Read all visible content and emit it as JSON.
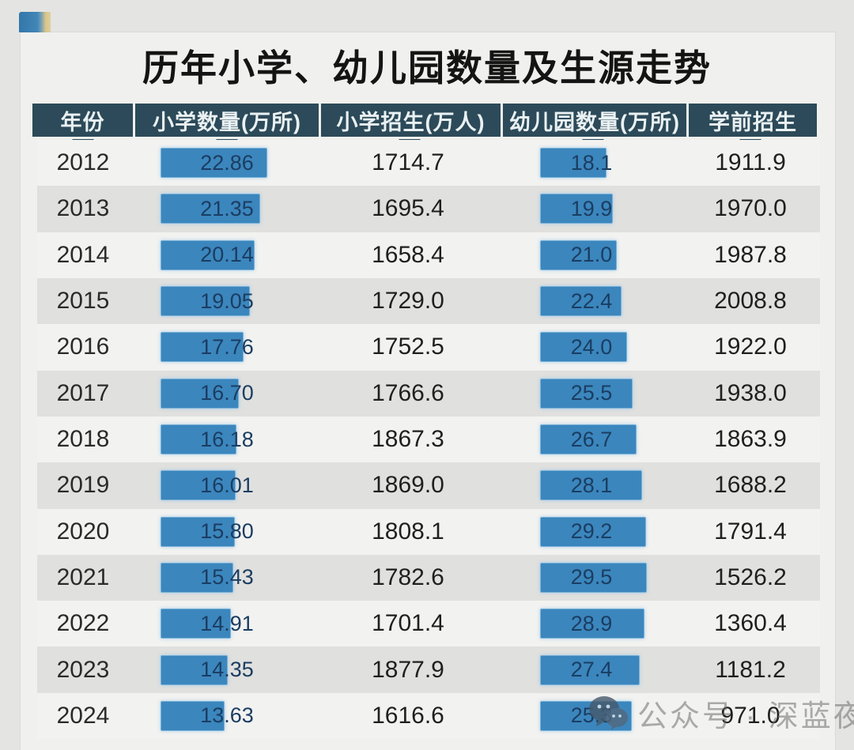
{
  "page": {
    "title": "历年小学、幼儿园数量及生源走势",
    "watermark": {
      "text": "公众号 · 深蓝夜读",
      "icon": "wechat-icon"
    }
  },
  "table": {
    "columns": [
      "年份",
      "小学数量(万所)",
      "小学招生(万人)",
      "幼儿园数量(万所)",
      "学前招生"
    ],
    "rows": [
      {
        "year": "2012",
        "primary_schools": "22.86",
        "primary_enrollment": "1714.7",
        "kindergartens": "18.1",
        "preschool_enrollment": "1911.9"
      },
      {
        "year": "2013",
        "primary_schools": "21.35",
        "primary_enrollment": "1695.4",
        "kindergartens": "19.9",
        "preschool_enrollment": "1970.0"
      },
      {
        "year": "2014",
        "primary_schools": "20.14",
        "primary_enrollment": "1658.4",
        "kindergartens": "21.0",
        "preschool_enrollment": "1987.8"
      },
      {
        "year": "2015",
        "primary_schools": "19.05",
        "primary_enrollment": "1729.0",
        "kindergartens": "22.4",
        "preschool_enrollment": "2008.8"
      },
      {
        "year": "2016",
        "primary_schools": "17.76",
        "primary_enrollment": "1752.5",
        "kindergartens": "24.0",
        "preschool_enrollment": "1922.0"
      },
      {
        "year": "2017",
        "primary_schools": "16.70",
        "primary_enrollment": "1766.6",
        "kindergartens": "25.5",
        "preschool_enrollment": "1938.0"
      },
      {
        "year": "2018",
        "primary_schools": "16.18",
        "primary_enrollment": "1867.3",
        "kindergartens": "26.7",
        "preschool_enrollment": "1863.9"
      },
      {
        "year": "2019",
        "primary_schools": "16.01",
        "primary_enrollment": "1869.0",
        "kindergartens": "28.1",
        "preschool_enrollment": "1688.2"
      },
      {
        "year": "2020",
        "primary_schools": "15.80",
        "primary_enrollment": "1808.1",
        "kindergartens": "29.2",
        "preschool_enrollment": "1791.4"
      },
      {
        "year": "2021",
        "primary_schools": "15.43",
        "primary_enrollment": "1782.6",
        "kindergartens": "29.5",
        "preschool_enrollment": "1526.2"
      },
      {
        "year": "2022",
        "primary_schools": "14.91",
        "primary_enrollment": "1701.4",
        "kindergartens": "28.9",
        "preschool_enrollment": "1360.4"
      },
      {
        "year": "2023",
        "primary_schools": "14.35",
        "primary_enrollment": "1877.9",
        "kindergartens": "27.4",
        "preschool_enrollment": "1181.2"
      },
      {
        "year": "2024",
        "primary_schools": "13.63",
        "primary_enrollment": "1616.6",
        "kindergartens": "25.3",
        "preschool_enrollment": "971.0"
      }
    ]
  },
  "chart_data": {
    "type": "table",
    "title": "历年小学、幼儿园数量及生源走势",
    "categories": [
      2012,
      2013,
      2014,
      2015,
      2016,
      2017,
      2018,
      2019,
      2020,
      2021,
      2022,
      2023,
      2024
    ],
    "series": [
      {
        "name": "小学数量(万所)",
        "display": "bar",
        "values": [
          22.86,
          21.35,
          20.14,
          19.05,
          17.76,
          16.7,
          16.18,
          16.01,
          15.8,
          15.43,
          14.91,
          14.35,
          13.63
        ]
      },
      {
        "name": "小学招生(万人)",
        "display": "number",
        "values": [
          1714.7,
          1695.4,
          1658.4,
          1729.0,
          1752.5,
          1766.6,
          1867.3,
          1869.0,
          1808.1,
          1782.6,
          1701.4,
          1877.9,
          1616.6
        ]
      },
      {
        "name": "幼儿园数量(万所)",
        "display": "bar",
        "values": [
          18.1,
          19.9,
          21.0,
          22.4,
          24.0,
          25.5,
          26.7,
          28.1,
          29.2,
          29.5,
          28.9,
          27.4,
          25.3
        ]
      },
      {
        "name": "学前招生",
        "display": "number",
        "values": [
          1911.9,
          1970.0,
          1987.8,
          2008.8,
          1922.0,
          1938.0,
          1863.9,
          1688.2,
          1791.4,
          1526.2,
          1360.4,
          1181.2,
          971.0
        ]
      }
    ],
    "layout_hints": {
      "bars_zero_based": true,
      "row_striping": true,
      "legend_position": "none"
    }
  },
  "colors": {
    "page_bg": "#e4e4e2",
    "card_bg": "#f0f0ee",
    "header_bg": "#2c4a59",
    "header_text": "#eaf1f3",
    "bar_fill": "#3b86bd",
    "bar_border": "#7ab1d7",
    "bar_text": "#1b3d62",
    "row_light": "#f2f2f0",
    "row_dark": "#e0e0de"
  }
}
